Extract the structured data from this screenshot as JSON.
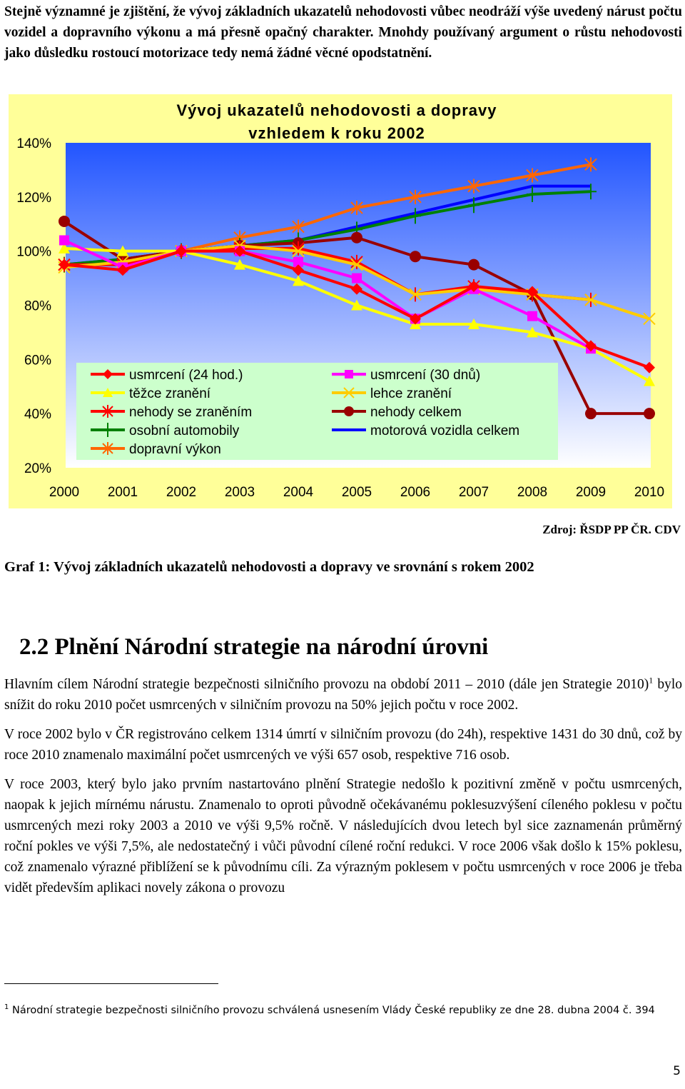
{
  "intro": {
    "text": "Stejně významné je zjištění, že vývoj základních ukazatelů nehodovosti vůbec neodráží výše uvedený nárust počtu vozidel a dopravního výkonu a má přesně opačný charakter. Mnohdy používaný argument o růstu nehodovosti jako důsledku rostoucí motorizace tedy nemá žádné věcné opodstatnění."
  },
  "chart_data": {
    "type": "line",
    "title_line1": "Vývoj ukazatelů nehodovosti a dopravy",
    "title_line2": "vzhledem k roku 2002",
    "x": [
      "2000",
      "2001",
      "2002",
      "2003",
      "2004",
      "2005",
      "2006",
      "2007",
      "2008",
      "2009",
      "2010"
    ],
    "y_ticks": [
      "140%",
      "120%",
      "100%",
      "80%",
      "60%",
      "40%",
      "20%"
    ],
    "ylim": [
      20,
      140
    ],
    "grid": false,
    "legend_position": "bottom-inside",
    "colors": {
      "page_bg": "#ffffff",
      "outer_bg": "#ffff99",
      "plot_bg_top": "#2255ff",
      "plot_bg_bottom": "#ffffff",
      "legend_bg": "#ccffcc"
    },
    "series": [
      {
        "name": "usmrcení (24 hod.)",
        "color": "#ff0000",
        "marker": "diamond",
        "values": [
          95,
          93,
          100,
          100,
          93,
          86,
          75,
          87,
          85,
          65,
          57
        ]
      },
      {
        "name": "usmrcení (30 dnů)",
        "color": "#ff00ff",
        "marker": "square",
        "values": [
          104,
          94,
          100,
          100,
          96,
          90,
          75,
          86,
          76,
          64,
          null
        ]
      },
      {
        "name": "těžce zranění",
        "color": "#ffff00",
        "marker": "triangle",
        "values": [
          101,
          100,
          100,
          95,
          89,
          80,
          73,
          73,
          70,
          64,
          52
        ]
      },
      {
        "name": "lehce zranění",
        "color": "#ffcc00",
        "marker": "xmark",
        "values": [
          94,
          96,
          100,
          102,
          100,
          95,
          84,
          86,
          84,
          82,
          75
        ]
      },
      {
        "name": "nehody se zraněním",
        "color": "#ff0000",
        "marker": "asterisk",
        "values": [
          95,
          95,
          100,
          101,
          101,
          96,
          84,
          87,
          84,
          82,
          null
        ]
      },
      {
        "name": "nehody celkem",
        "color": "#990000",
        "marker": "circle",
        "values": [
          111,
          97,
          100,
          102,
          103,
          105,
          98,
          95,
          84,
          40,
          40
        ]
      },
      {
        "name": "osobní automobily",
        "color": "#008000",
        "marker": "plus",
        "values": [
          95,
          97,
          100,
          102,
          104,
          108,
          113,
          117,
          121,
          122,
          null
        ]
      },
      {
        "name": "motorová vozidla celkem",
        "color": "#0000ff",
        "marker": "none",
        "values": [
          95,
          97,
          100,
          102,
          104,
          109,
          114,
          119,
          124,
          124,
          null
        ]
      },
      {
        "name": "dopravní výkon",
        "color": "#ff6600",
        "marker": "asterisk",
        "values": [
          95,
          96,
          100,
          105,
          109,
          116,
          120,
          124,
          128,
          132,
          null
        ]
      }
    ]
  },
  "source": "Zdroj: ŘSDP PP ČR. CDV",
  "caption": "Graf 1: Vývoj základních ukazatelů nehodovosti a dopravy ve srovnání s rokem 2002",
  "heading": "2.2 Plnění Národní strategie na národní úrovni",
  "p1_before": "Hlavním cílem Národní strategie bezpečnosti silničního provozu na období 2011 – 2010 (dále jen Strategie 2010)",
  "p1_sup": "1",
  "p1_after": " bylo snížit do roku 2010 počet usmrcených v silničním provozu na 50% jejich počtu v roce 2002.",
  "p2": "V roce 2002 bylo v ČR registrováno celkem 1314 úmrtí v silničním provozu (do 24h), respektive 1431 do 30 dnů, což by roce 2010 znamenalo maximální počet usmrcených ve výši 657 osob, respektive 716 osob.",
  "p3": "V roce 2003, který bylo jako prvním nastartováno plnění Strategie nedošlo k pozitivní změně v počtu usmrcených, naopak k jejich mírnému nárustu. Znamenalo to oproti původně očekávanému poklesuzvýšení cíleného poklesu v počtu usmrcených mezi roky 2003 a 2010 ve výši 9,5% ročně. V následujících dvou letech byl sice zaznamenán průměrný roční pokles ve výši 7,5%, ale nedostatečný i vůči původní cílené roční redukci. V roce 2006 však došlo k 15% poklesu, což znamenalo výrazné přiblížení se k původnímu cíli. Za výrazným poklesem v počtu usmrcených v roce 2006 je třeba vidět především aplikaci novely zákona o provozu",
  "footnote": {
    "num": "1",
    "text": "Národní strategie bezpečnosti silničního provozu schválená usnesením Vlády České republiky ze dne 28. dubna 2004 č. 394"
  },
  "page_number": "5"
}
